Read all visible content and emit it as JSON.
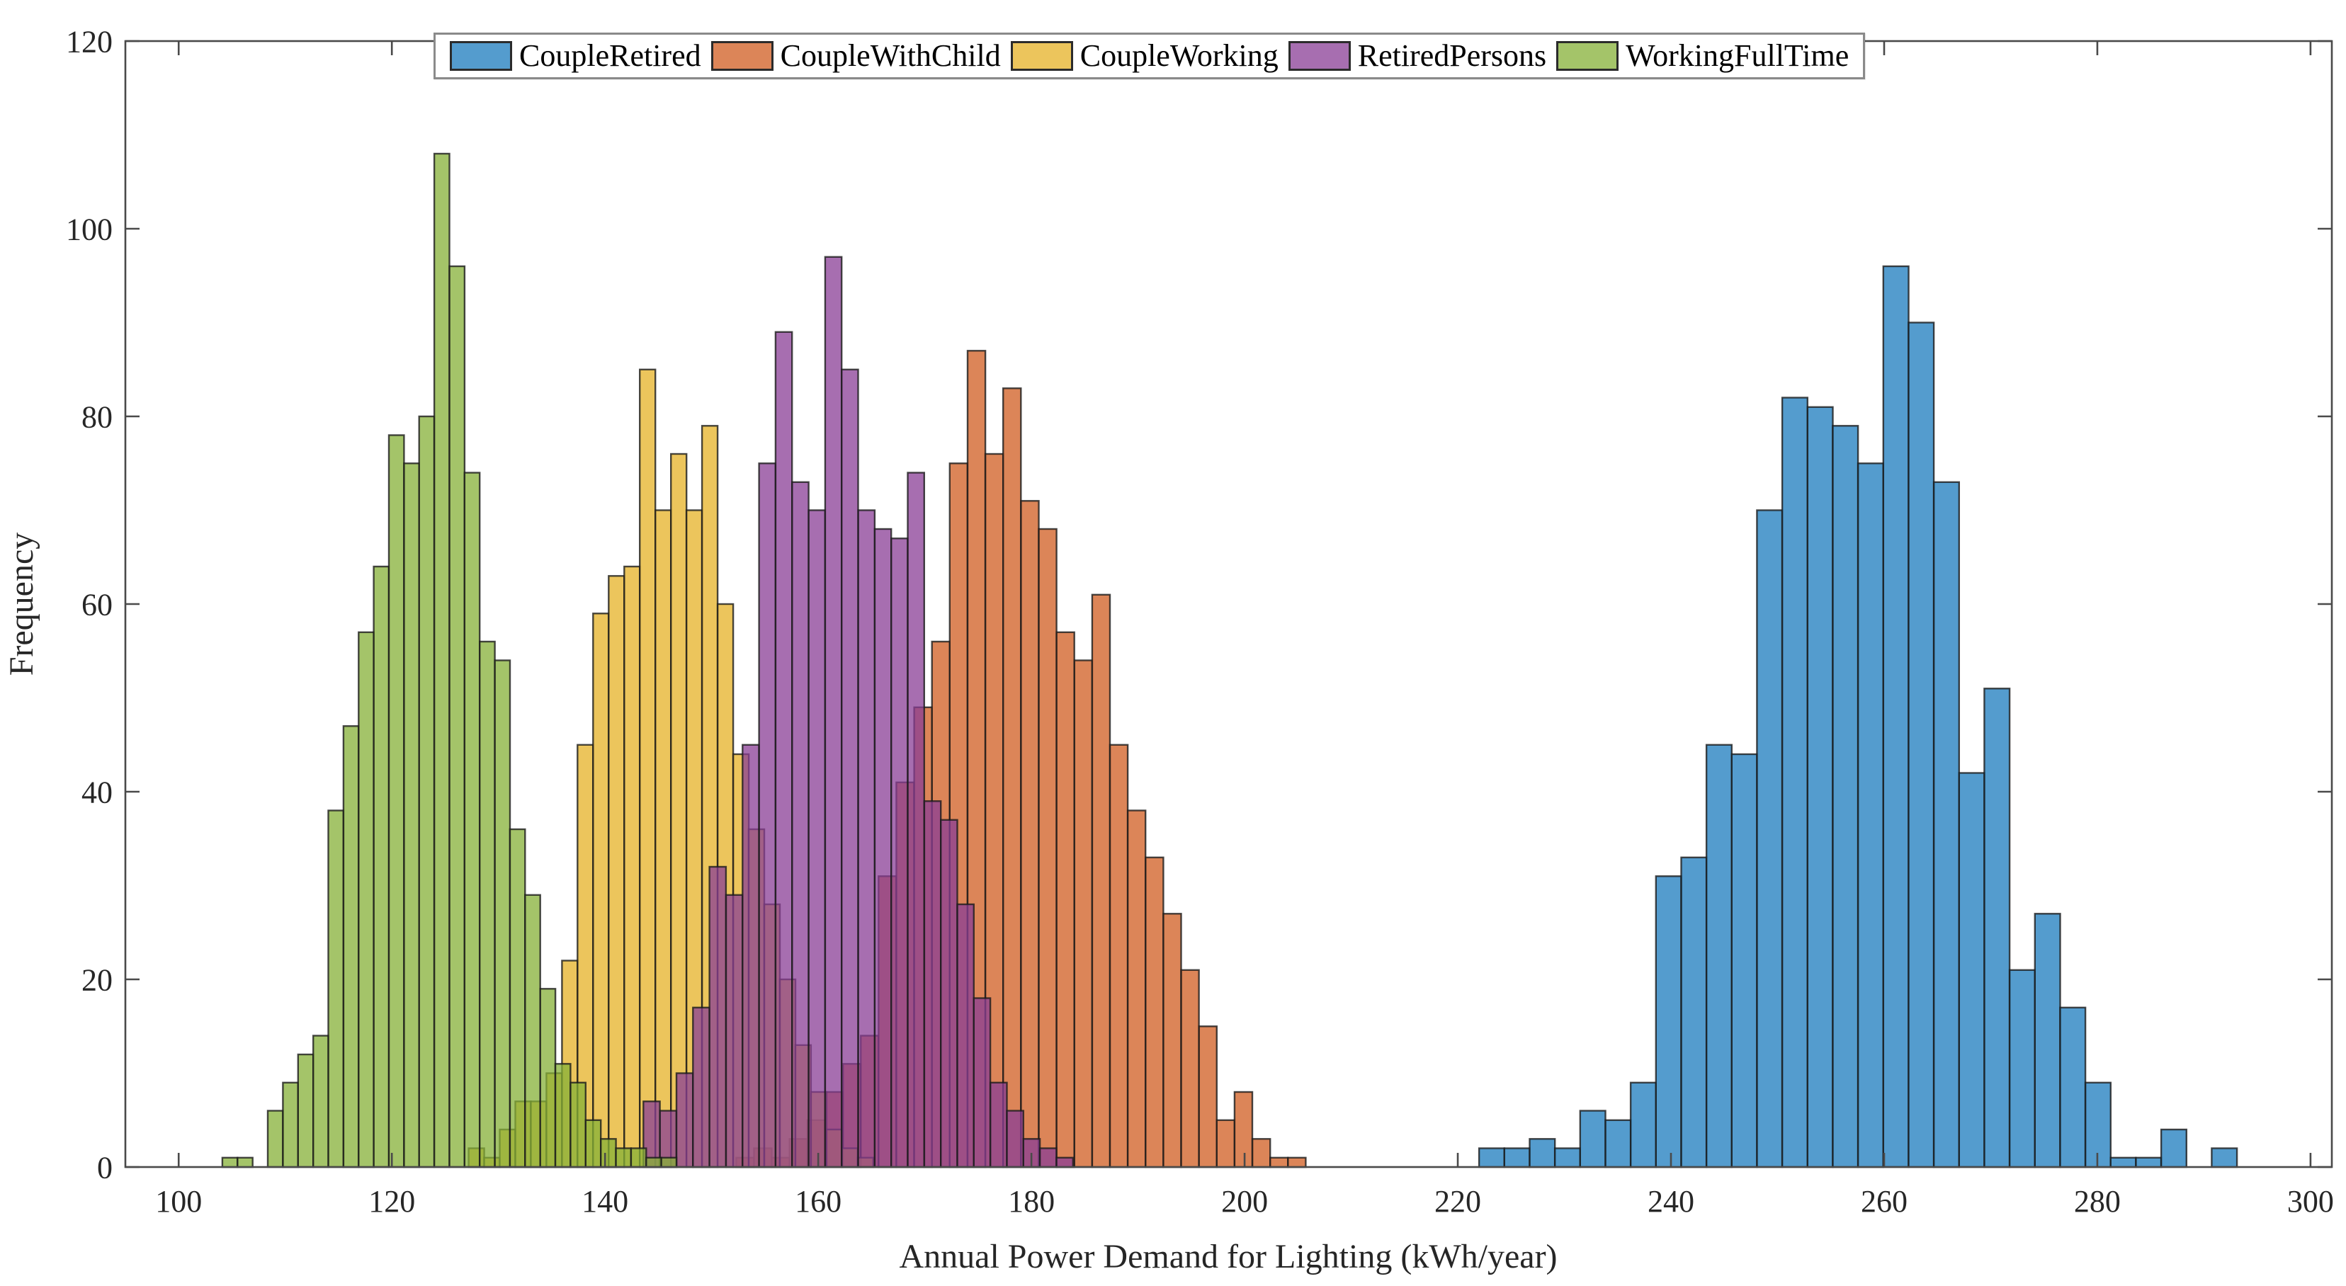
{
  "axes": {
    "xlabel": "Annual Power Demand for Lighting (kWh/year)",
    "ylabel": "Frequency",
    "xlim": [
      95,
      302
    ],
    "ylim": [
      0,
      120
    ],
    "xticks": [
      100,
      120,
      140,
      160,
      180,
      200,
      220,
      240,
      260,
      280,
      300
    ],
    "yticks": [
      0,
      20,
      40,
      60,
      80,
      100,
      120
    ],
    "spine_color": "#4a4a4a",
    "tick_label_size": 44,
    "axis_label_size": 48
  },
  "legend": {
    "items": [
      "CoupleRetired",
      "CoupleWithChild",
      "CoupleWorking",
      "RetiredPersons",
      "WorkingFullTime"
    ]
  },
  "chart_data": {
    "type": "bar",
    "subtype": "overlaid-histograms",
    "title": "",
    "xlabel": "Annual Power Demand for Lighting (kWh/year)",
    "ylabel": "Frequency",
    "xlim": [
      95,
      302
    ],
    "ylim": [
      0,
      120
    ],
    "grid": false,
    "legend_position": "top",
    "face_alpha": 0.75,
    "edge_color": "#1c1c1c",
    "series": [
      {
        "name": "CoupleRetired",
        "color": "#1b7bbd",
        "bin_start": 222.0,
        "bin_width": 2.37,
        "values": [
          2,
          2,
          3,
          2,
          6,
          5,
          9,
          31,
          33,
          45,
          44,
          70,
          82,
          81,
          79,
          75,
          96,
          90,
          73,
          42,
          51,
          21,
          27,
          17,
          9,
          1,
          1,
          4,
          0,
          2
        ]
      },
      {
        "name": "CoupleWithChild",
        "color": "#d05c20",
        "bin_start": 152.3,
        "bin_width": 1.67,
        "values": [
          1,
          2,
          1,
          3,
          5,
          8,
          11,
          14,
          31,
          41,
          49,
          56,
          75,
          87,
          76,
          83,
          71,
          68,
          57,
          54,
          61,
          45,
          38,
          33,
          27,
          21,
          15,
          5,
          8,
          3,
          1,
          1
        ]
      },
      {
        "name": "CoupleWorking",
        "color": "#e6b226",
        "bin_start": 127.2,
        "bin_width": 1.46,
        "values": [
          2,
          1,
          4,
          7,
          7,
          10,
          22,
          45,
          59,
          63,
          64,
          85,
          70,
          76,
          70,
          79,
          60,
          44,
          36,
          28,
          20,
          13,
          8,
          4,
          2,
          1
        ]
      },
      {
        "name": "RetiredPersons",
        "color": "#8a3d96",
        "bin_start": 143.6,
        "bin_width": 1.55,
        "values": [
          7,
          6,
          10,
          17,
          32,
          29,
          45,
          75,
          89,
          73,
          70,
          97,
          85,
          70,
          68,
          67,
          74,
          39,
          37,
          28,
          18,
          9,
          6,
          3,
          2,
          1
        ]
      },
      {
        "name": "WorkingFullTime",
        "color": "#85b037",
        "bin_start": 104.1,
        "bin_width": 1.42,
        "values": [
          1,
          1,
          0,
          6,
          9,
          12,
          14,
          38,
          47,
          57,
          64,
          78,
          75,
          80,
          108,
          96,
          74,
          56,
          54,
          36,
          29,
          19,
          11,
          9,
          5,
          3,
          2,
          2,
          1,
          1
        ]
      }
    ]
  }
}
